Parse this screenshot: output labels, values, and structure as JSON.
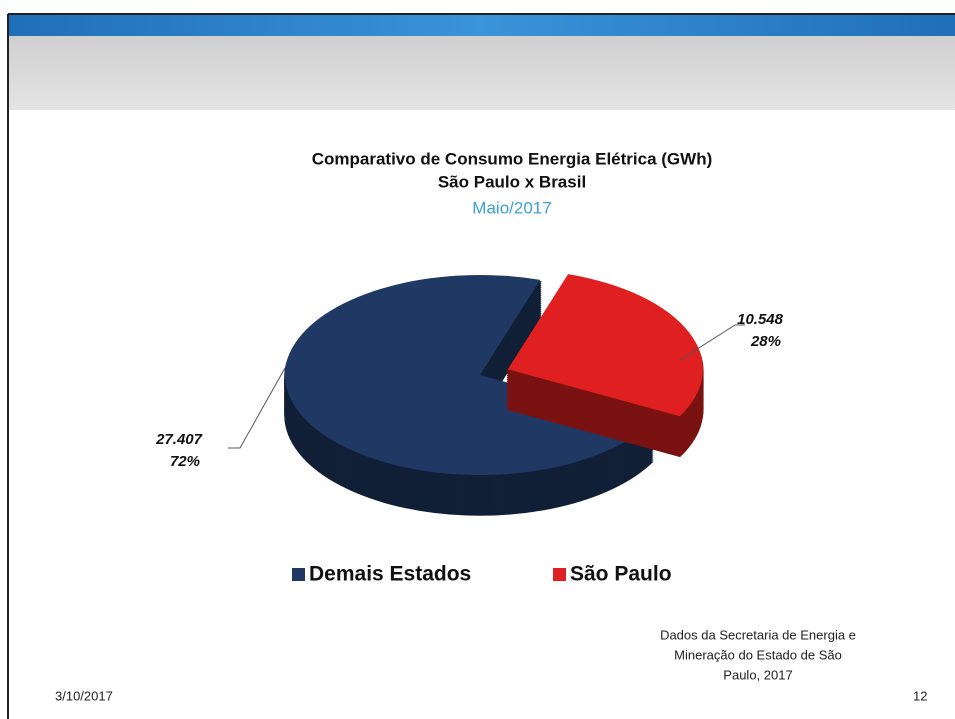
{
  "chart_data": {
    "type": "pie",
    "title": "Comparativo de Consumo Energia Elétrica  (GWh)",
    "subtitle": "São Paulo x Brasil",
    "period": "Maio/2017",
    "categories": [
      "Demais Estados",
      "São Paulo"
    ],
    "values": [
      27407,
      10548
    ],
    "value_labels": [
      "27.407",
      "10.548"
    ],
    "percent_labels": [
      "72%",
      "28%"
    ],
    "colors": [
      "#1f3864",
      "#e02020"
    ],
    "legend": "bottom"
  },
  "slide": {
    "source": [
      "Dados da Secretaria de Energia e",
      "Mineração do Estado de São",
      "Paulo, 2017"
    ],
    "date": "3/10/2017",
    "page": "12"
  }
}
